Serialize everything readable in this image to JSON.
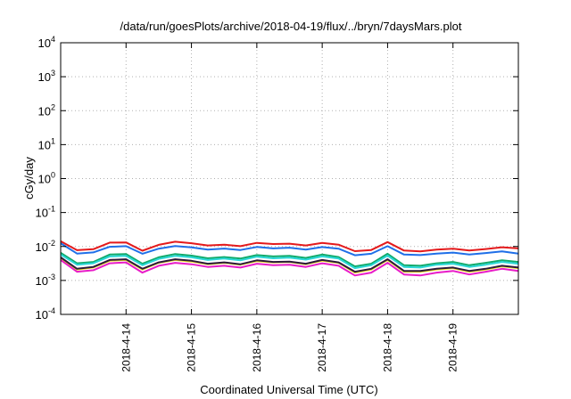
{
  "chart_data": {
    "type": "line",
    "title": "/data/run/goesPlots/archive/2018-04-19/flux/../bryn/7daysMars.plot",
    "xlabel": "Coordinated Universal Time (UTC)",
    "ylabel": "cGy/day",
    "yscale": "log",
    "ylim": [
      0.0001,
      10000
    ],
    "yticks": [
      {
        "value": 0.0001,
        "base": "10",
        "exp": "-4"
      },
      {
        "value": 0.001,
        "base": "10",
        "exp": "-3"
      },
      {
        "value": 0.01,
        "base": "10",
        "exp": "-2"
      },
      {
        "value": 0.1,
        "base": "10",
        "exp": "-1"
      },
      {
        "value": 1,
        "base": "10",
        "exp": "0"
      },
      {
        "value": 10,
        "base": "10",
        "exp": "1"
      },
      {
        "value": 100,
        "base": "10",
        "exp": "2"
      },
      {
        "value": 1000,
        "base": "10",
        "exp": "3"
      },
      {
        "value": 10000,
        "base": "10",
        "exp": "4"
      }
    ],
    "xlim": [
      "2018-04-13T00:00",
      "2018-04-20T00:00"
    ],
    "xticks": [
      "2018-4-14",
      "2018-4-15",
      "2018-4-16",
      "2018-4-17",
      "2018-4-18",
      "2018-4-19"
    ],
    "grid": true,
    "legend": "none",
    "x": [
      "2018-04-13T00:00",
      "2018-04-13T06:00",
      "2018-04-13T12:00",
      "2018-04-13T18:00",
      "2018-04-14T00:00",
      "2018-04-14T06:00",
      "2018-04-14T12:00",
      "2018-04-14T18:00",
      "2018-04-15T00:00",
      "2018-04-15T06:00",
      "2018-04-15T12:00",
      "2018-04-15T18:00",
      "2018-04-16T00:00",
      "2018-04-16T06:00",
      "2018-04-16T12:00",
      "2018-04-16T18:00",
      "2018-04-17T00:00",
      "2018-04-17T06:00",
      "2018-04-17T12:00",
      "2018-04-17T18:00",
      "2018-04-18T00:00",
      "2018-04-18T06:00",
      "2018-04-18T12:00",
      "2018-04-18T18:00",
      "2018-04-19T00:00",
      "2018-04-19T06:00",
      "2018-04-19T12:00",
      "2018-04-19T18:00",
      "2018-04-20T00:00"
    ],
    "series": [
      {
        "color": "#e41a1c",
        "values": [
          0.0142,
          0.0078,
          0.0083,
          0.013,
          0.0132,
          0.0075,
          0.0112,
          0.0138,
          0.0125,
          0.0107,
          0.0113,
          0.0102,
          0.0128,
          0.0118,
          0.0121,
          0.0107,
          0.0128,
          0.0113,
          0.0073,
          0.0079,
          0.0135,
          0.0076,
          0.0072,
          0.0081,
          0.0086,
          0.0076,
          0.0084,
          0.0095,
          0.0088
        ]
      },
      {
        "color": "#1f6fe8",
        "values": [
          0.0125,
          0.0062,
          0.0067,
          0.0098,
          0.0102,
          0.0061,
          0.0086,
          0.0103,
          0.0094,
          0.0081,
          0.0087,
          0.0079,
          0.0097,
          0.0088,
          0.0092,
          0.0081,
          0.0096,
          0.0086,
          0.0055,
          0.0061,
          0.0102,
          0.0058,
          0.0056,
          0.0062,
          0.0066,
          0.0058,
          0.0064,
          0.0072,
          0.0062
        ]
      },
      {
        "color": "#11aa6a",
        "values": [
          0.0065,
          0.0032,
          0.0035,
          0.0058,
          0.006,
          0.0031,
          0.0048,
          0.006,
          0.0054,
          0.0045,
          0.0049,
          0.0044,
          0.0056,
          0.0051,
          0.0053,
          0.0046,
          0.0058,
          0.0049,
          0.0026,
          0.0031,
          0.0061,
          0.0028,
          0.0027,
          0.0032,
          0.0035,
          0.0028,
          0.0033,
          0.0039,
          0.0035
        ]
      },
      {
        "color": "#2ad7d7",
        "values": [
          0.0058,
          0.0029,
          0.0032,
          0.0051,
          0.0053,
          0.0028,
          0.0043,
          0.0053,
          0.0048,
          0.004,
          0.0044,
          0.0039,
          0.005,
          0.0045,
          0.0047,
          0.0041,
          0.0051,
          0.0044,
          0.0023,
          0.0028,
          0.0054,
          0.0025,
          0.0024,
          0.0029,
          0.0031,
          0.0025,
          0.0029,
          0.0035,
          0.0031
        ]
      },
      {
        "color": "#f0e020",
        "values": [
          0.0045,
          0.0021,
          0.0024,
          0.0038,
          0.004,
          0.0021,
          0.0033,
          0.004,
          0.0036,
          0.003,
          0.0033,
          0.0029,
          0.0037,
          0.0034,
          0.0035,
          0.003,
          0.0038,
          0.0033,
          0.0017,
          0.0021,
          0.004,
          0.0018,
          0.0018,
          0.0021,
          0.0023,
          0.0018,
          0.0021,
          0.0026,
          0.0023
        ]
      },
      {
        "color": "#2b1a3a",
        "values": [
          0.0048,
          0.0022,
          0.0025,
          0.004,
          0.0042,
          0.0022,
          0.0034,
          0.0042,
          0.0038,
          0.0031,
          0.0034,
          0.003,
          0.0039,
          0.0035,
          0.0036,
          0.0031,
          0.004,
          0.0034,
          0.0018,
          0.0022,
          0.0042,
          0.0019,
          0.0019,
          0.0022,
          0.0024,
          0.0019,
          0.0022,
          0.0027,
          0.0024
        ]
      },
      {
        "color": "#e81cc8",
        "values": [
          0.004,
          0.0018,
          0.002,
          0.0032,
          0.0034,
          0.0017,
          0.0027,
          0.0033,
          0.003,
          0.0025,
          0.0027,
          0.0024,
          0.0031,
          0.0028,
          0.0029,
          0.0025,
          0.0032,
          0.0027,
          0.0014,
          0.0017,
          0.0033,
          0.0015,
          0.0014,
          0.0017,
          0.0019,
          0.0015,
          0.0018,
          0.0022,
          0.0019
        ]
      }
    ]
  }
}
